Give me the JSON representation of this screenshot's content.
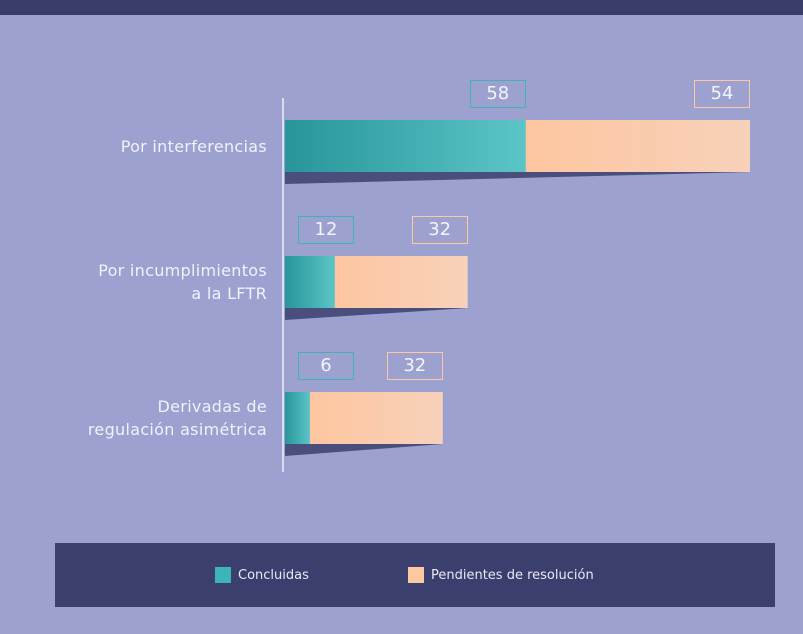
{
  "chart_data": {
    "type": "bar",
    "orientation": "horizontal",
    "stacked": true,
    "categories": [
      "Por interferencias",
      "Por incumplimientos\na la LFTR",
      "Derivadas de\nregulación asimétrica"
    ],
    "series": [
      {
        "name": "Concluidas",
        "color": "#3fb3b8",
        "values": [
          58,
          12,
          6
        ]
      },
      {
        "name": "Pendientes de resolución",
        "color": "#fcc9a3",
        "values": [
          54,
          32,
          32
        ]
      }
    ],
    "legend": "bottom"
  }
}
